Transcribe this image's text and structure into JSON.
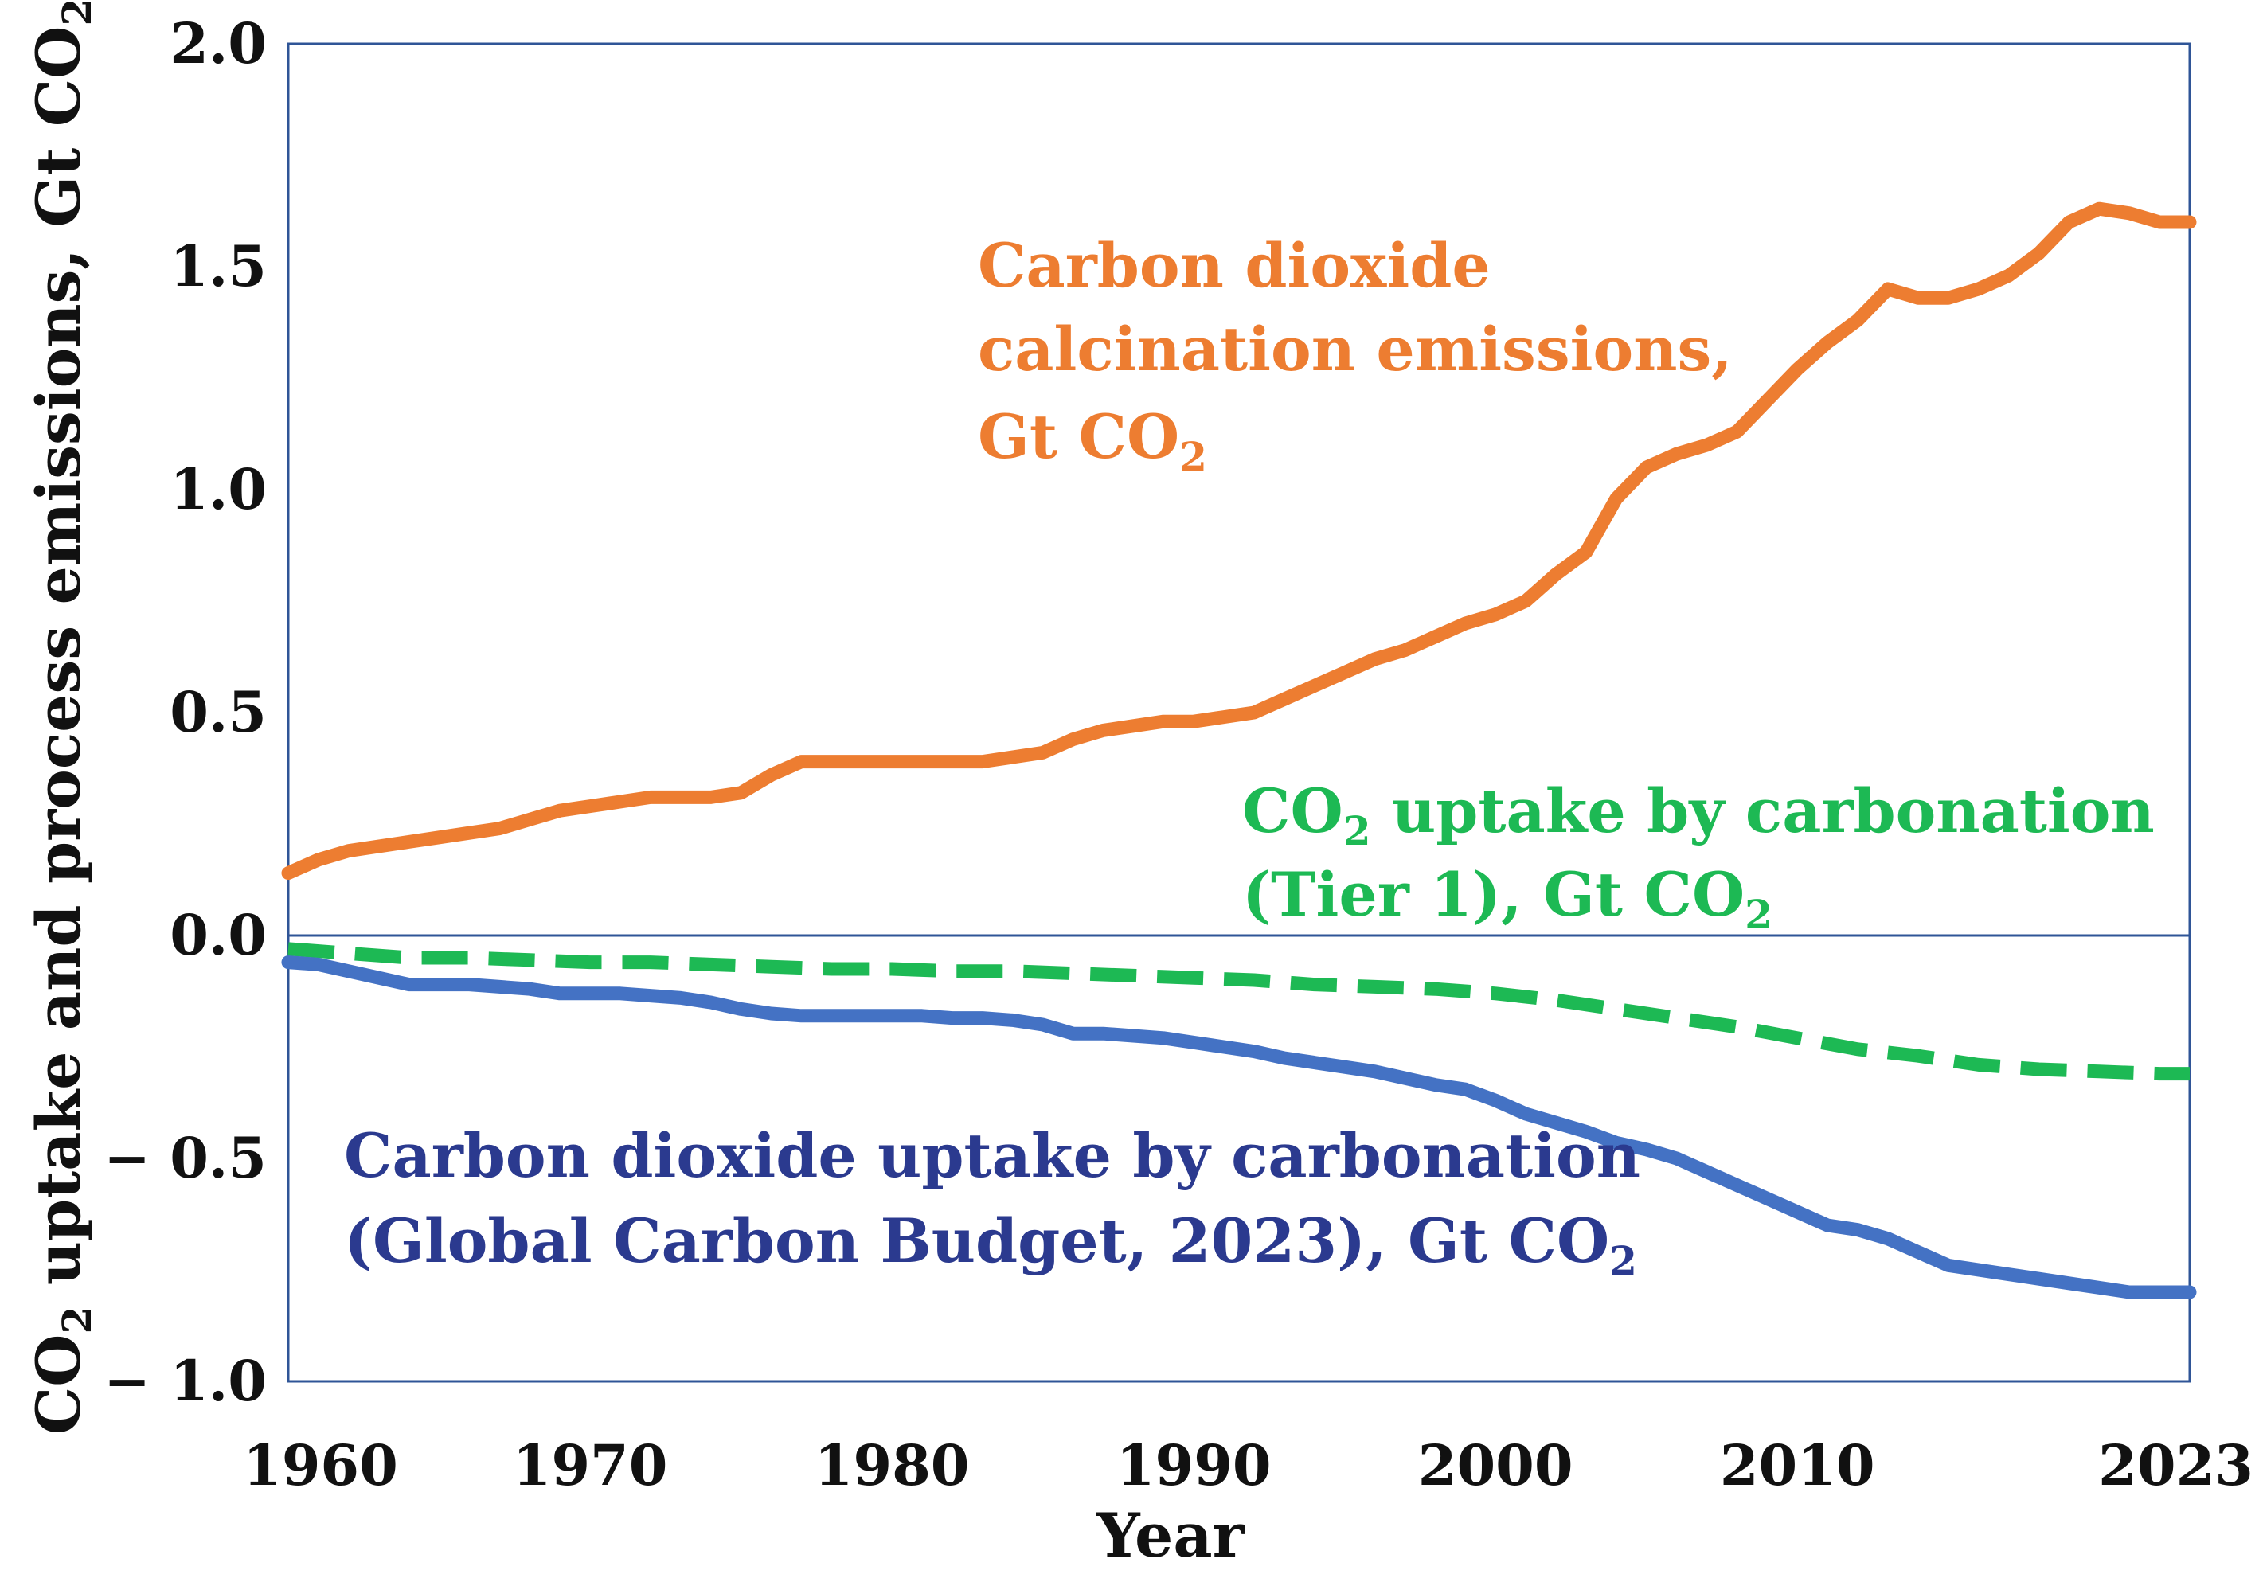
{
  "chart_data": {
    "type": "line",
    "title": "",
    "xlabel": "Year",
    "ylabel": {
      "pre": "CO",
      "sub": "2",
      "mid": " uptake and process emissions, Gt CO",
      "sub2": "2"
    },
    "xlim": [
      1960,
      2023
    ],
    "ylim": [
      -1.0,
      2.0
    ],
    "x_ticks": [
      "1960",
      "1970",
      "1980",
      "1990",
      "2000",
      "2010",
      "2023"
    ],
    "x_tick_values": [
      1960,
      1970,
      1980,
      1990,
      2000,
      2010,
      2023
    ],
    "y_ticks": [
      "2.0",
      "1.5",
      "1.0",
      "0.5",
      "0.0",
      "− 0.5",
      "− 1.0"
    ],
    "y_tick_values": [
      2.0,
      1.5,
      1.0,
      0.5,
      0.0,
      -0.5,
      -1.0
    ],
    "grid": false,
    "zero_line": true,
    "series": [
      {
        "name": "Carbon dioxide calcination emissions, Gt CO2",
        "color": "#ED7D31",
        "style": "solid",
        "x": [
          1960,
          1961,
          1962,
          1963,
          1964,
          1965,
          1966,
          1967,
          1968,
          1969,
          1970,
          1971,
          1972,
          1973,
          1974,
          1975,
          1976,
          1977,
          1978,
          1979,
          1980,
          1981,
          1982,
          1983,
          1984,
          1985,
          1986,
          1987,
          1988,
          1989,
          1990,
          1991,
          1992,
          1993,
          1994,
          1995,
          1996,
          1997,
          1998,
          1999,
          2000,
          2001,
          2002,
          2003,
          2004,
          2005,
          2006,
          2007,
          2008,
          2009,
          2010,
          2011,
          2012,
          2013,
          2014,
          2015,
          2016,
          2017,
          2018,
          2019,
          2020,
          2021,
          2022,
          2023
        ],
        "values": [
          0.14,
          0.17,
          0.19,
          0.2,
          0.21,
          0.22,
          0.23,
          0.24,
          0.26,
          0.28,
          0.29,
          0.3,
          0.31,
          0.31,
          0.31,
          0.32,
          0.36,
          0.39,
          0.39,
          0.39,
          0.39,
          0.39,
          0.39,
          0.39,
          0.4,
          0.41,
          0.44,
          0.46,
          0.47,
          0.48,
          0.48,
          0.49,
          0.5,
          0.53,
          0.56,
          0.59,
          0.62,
          0.64,
          0.67,
          0.7,
          0.72,
          0.75,
          0.81,
          0.86,
          0.98,
          1.05,
          1.08,
          1.1,
          1.13,
          1.2,
          1.27,
          1.33,
          1.38,
          1.45,
          1.43,
          1.43,
          1.45,
          1.48,
          1.53,
          1.6,
          1.63,
          1.62,
          1.6,
          1.6
        ]
      },
      {
        "name": "CO2 uptake by carbonation (Tier 1), Gt CO2",
        "color": "#1DB954",
        "style": "dashed",
        "x": [
          1960,
          1962,
          1964,
          1966,
          1968,
          1970,
          1972,
          1974,
          1976,
          1978,
          1980,
          1982,
          1984,
          1986,
          1988,
          1990,
          1992,
          1994,
          1996,
          1998,
          2000,
          2002,
          2004,
          2006,
          2008,
          2010,
          2012,
          2014,
          2016,
          2018,
          2020,
          2022,
          2023
        ],
        "values": [
          -0.03,
          -0.04,
          -0.05,
          -0.05,
          -0.055,
          -0.06,
          -0.06,
          -0.065,
          -0.07,
          -0.075,
          -0.075,
          -0.08,
          -0.08,
          -0.085,
          -0.09,
          -0.095,
          -0.1,
          -0.11,
          -0.115,
          -0.12,
          -0.13,
          -0.145,
          -0.165,
          -0.185,
          -0.205,
          -0.23,
          -0.255,
          -0.27,
          -0.29,
          -0.3,
          -0.305,
          -0.31,
          -0.31
        ]
      },
      {
        "name": "Carbon dioxide uptake by carbonation (Global Carbon Budget, 2023), Gt CO2",
        "color": "#4472C4",
        "style": "solid",
        "x": [
          1960,
          1961,
          1962,
          1963,
          1964,
          1965,
          1966,
          1967,
          1968,
          1969,
          1970,
          1971,
          1972,
          1973,
          1974,
          1975,
          1976,
          1977,
          1978,
          1979,
          1980,
          1981,
          1982,
          1983,
          1984,
          1985,
          1986,
          1987,
          1988,
          1989,
          1990,
          1991,
          1992,
          1993,
          1994,
          1995,
          1996,
          1997,
          1998,
          1999,
          2000,
          2001,
          2002,
          2003,
          2004,
          2005,
          2006,
          2007,
          2008,
          2009,
          2010,
          2011,
          2012,
          2013,
          2014,
          2015,
          2016,
          2017,
          2018,
          2019,
          2020,
          2021,
          2022,
          2023
        ],
        "values": [
          -0.06,
          -0.065,
          -0.08,
          -0.095,
          -0.11,
          -0.11,
          -0.11,
          -0.115,
          -0.12,
          -0.13,
          -0.13,
          -0.13,
          -0.135,
          -0.14,
          -0.15,
          -0.165,
          -0.175,
          -0.18,
          -0.18,
          -0.18,
          -0.18,
          -0.18,
          -0.185,
          -0.185,
          -0.19,
          -0.2,
          -0.22,
          -0.22,
          -0.225,
          -0.23,
          -0.24,
          -0.25,
          -0.26,
          -0.275,
          -0.285,
          -0.295,
          -0.305,
          -0.32,
          -0.335,
          -0.345,
          -0.37,
          -0.4,
          -0.42,
          -0.44,
          -0.465,
          -0.48,
          -0.5,
          -0.53,
          -0.56,
          -0.59,
          -0.62,
          -0.65,
          -0.66,
          -0.68,
          -0.71,
          -0.74,
          -0.75,
          -0.76,
          -0.77,
          -0.78,
          -0.79,
          -0.8,
          -0.8,
          -0.8
        ]
      }
    ],
    "annotations": [
      {
        "id": "orange",
        "color": "#ED7D31",
        "lines": [
          {
            "text": "Carbon dioxide"
          },
          {
            "text": "calcination emissions,"
          },
          {
            "text": "Gt CO",
            "sub": "2"
          }
        ]
      },
      {
        "id": "green",
        "color": "#1DB954",
        "lines": [
          {
            "text": "CO",
            "sub": "2",
            "after": " uptake by carbonation"
          },
          {
            "text": "(Tier 1), Gt CO",
            "sub": "2"
          }
        ]
      },
      {
        "id": "blue",
        "color": "#2B3A8F",
        "lines": [
          {
            "text": "Carbon dioxide uptake by carbonation"
          },
          {
            "text": "(Global Carbon Budget, 2023), Gt CO",
            "sub": "2"
          }
        ]
      }
    ]
  }
}
